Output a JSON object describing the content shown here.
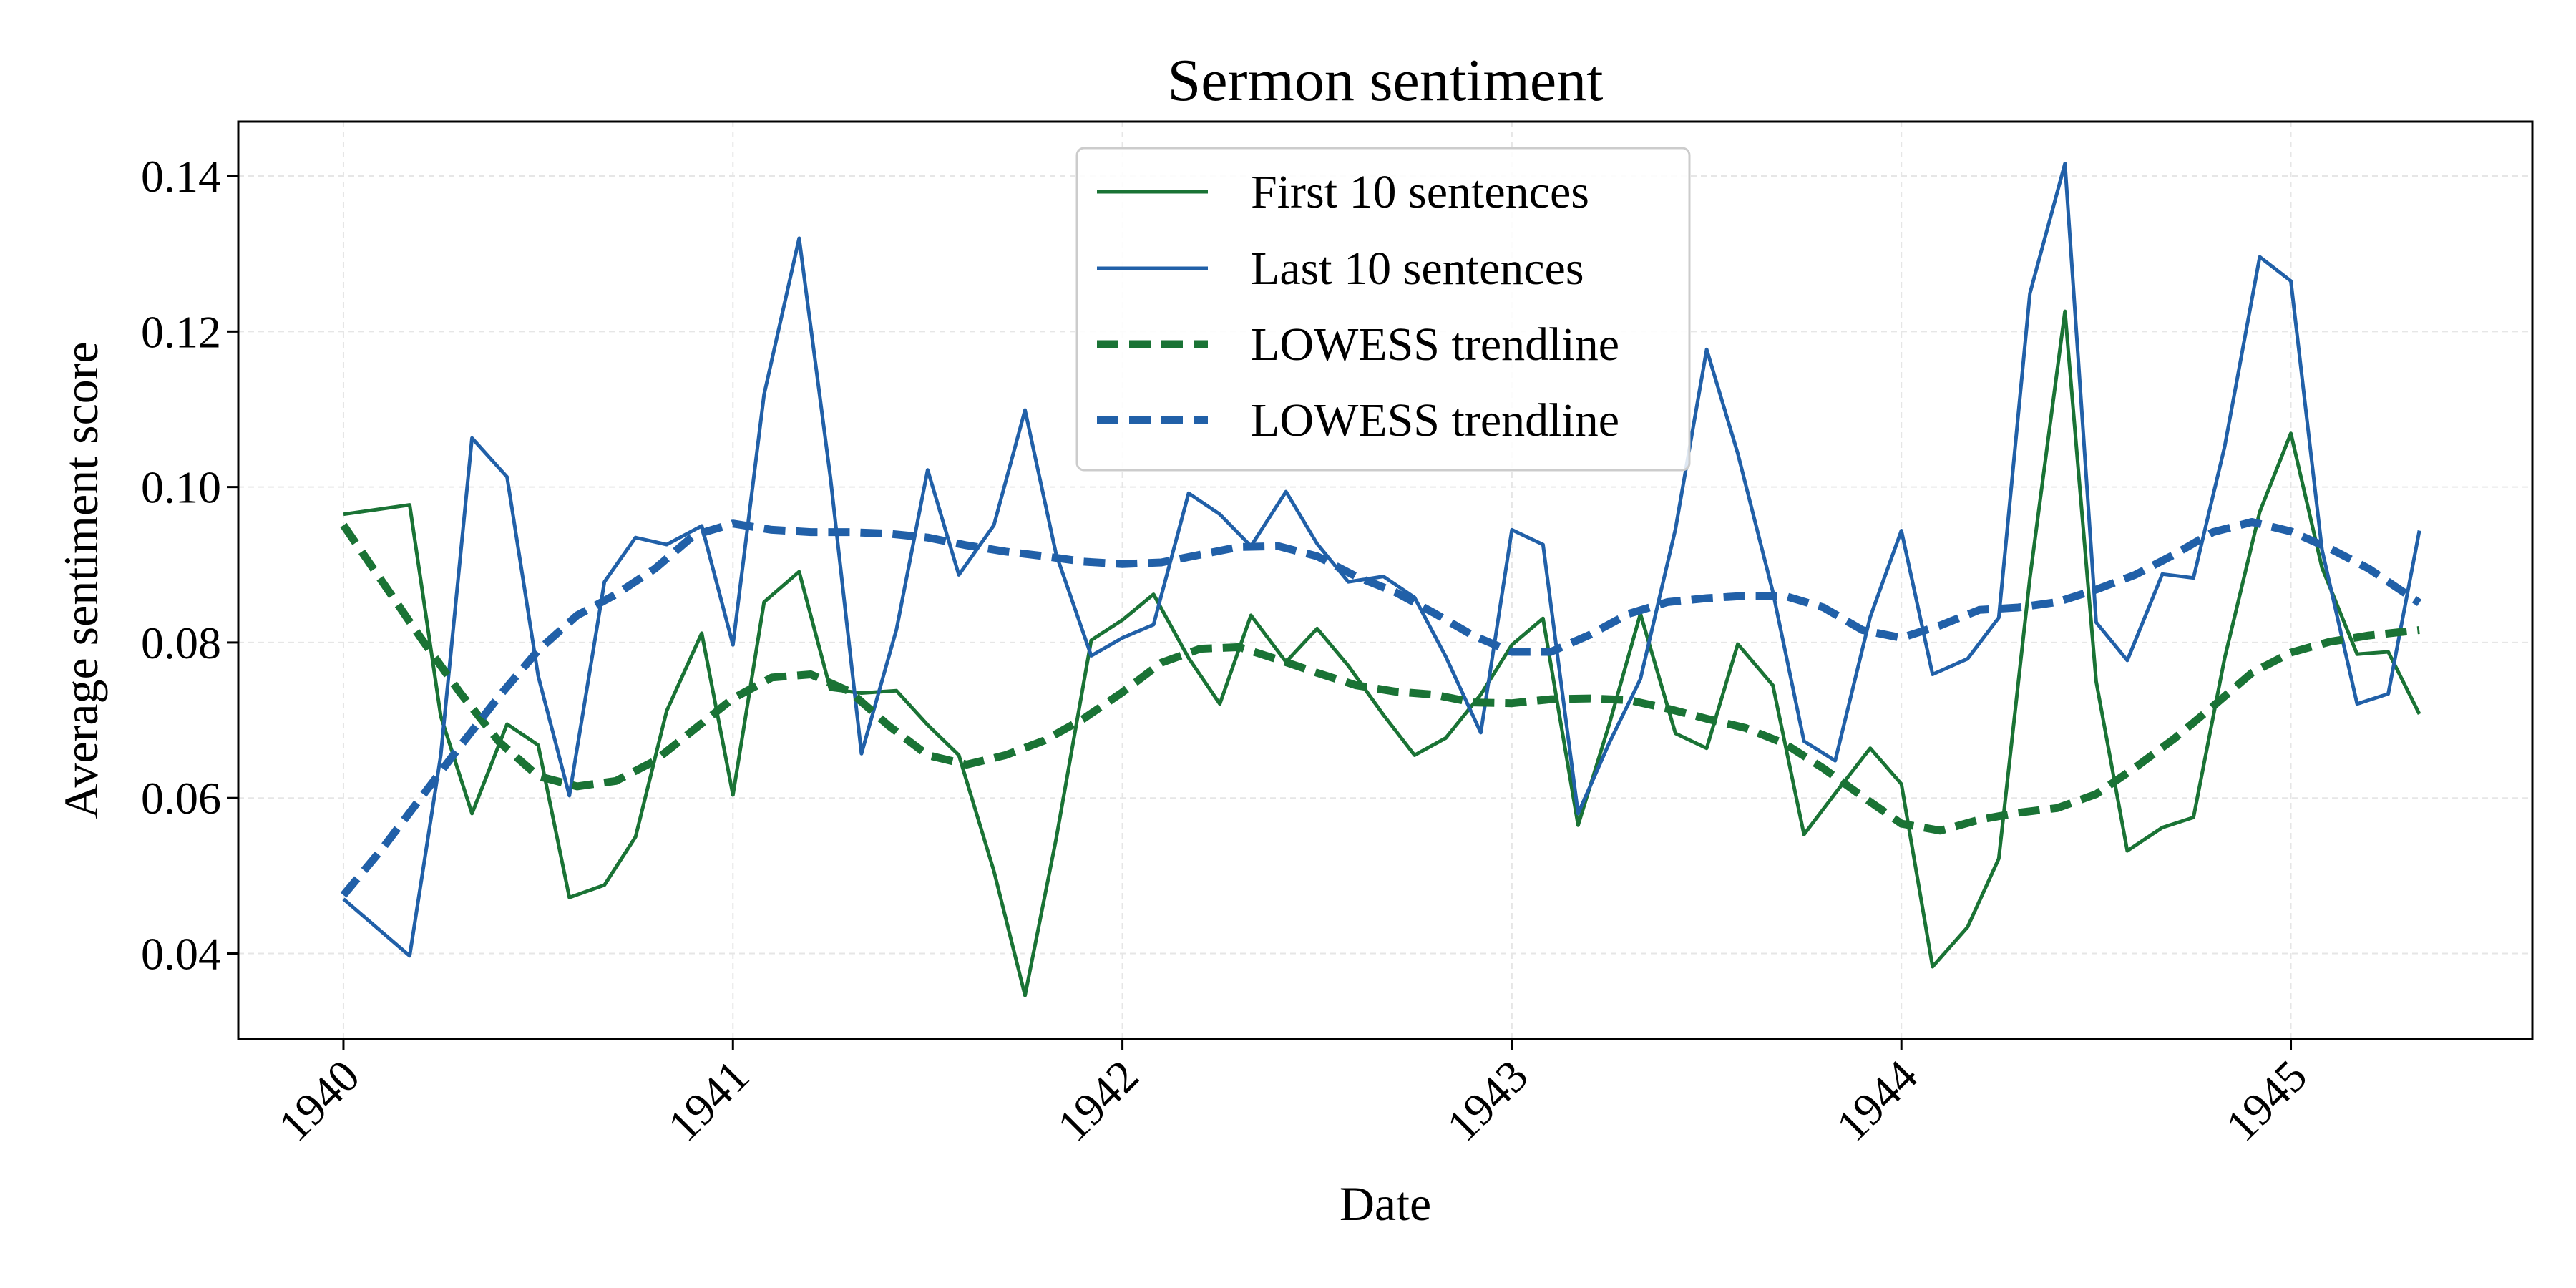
{
  "chart_data": {
    "type": "line",
    "title": "Sermon sentiment",
    "xlabel": "Date",
    "ylabel": "Average sentiment score",
    "x_ticks": [
      "1940",
      "1941",
      "1942",
      "1943",
      "1944",
      "1945"
    ],
    "y_ticks": [
      "0.04",
      "0.06",
      "0.08",
      "0.10",
      "0.12",
      "0.14"
    ],
    "x_range_years": [
      1939.73,
      1945.62
    ],
    "ylim": [
      0.029,
      0.147
    ],
    "grid": true,
    "legend_position": "top-center",
    "colors": {
      "green": "#1a7335",
      "blue": "#2160a8"
    },
    "series": [
      {
        "name": "First 10 sentences",
        "color": "#1a7335",
        "style": "solid",
        "x": [
          1940.0,
          1940.17,
          1940.25,
          1940.33,
          1940.42,
          1940.5,
          1940.58,
          1940.67,
          1940.75,
          1940.83,
          1940.92,
          1941.0,
          1941.08,
          1941.17,
          1941.25,
          1941.33,
          1941.42,
          1941.5,
          1941.58,
          1941.67,
          1941.75,
          1941.83,
          1941.92,
          1942.0,
          1942.08,
          1942.17,
          1942.25,
          1942.33,
          1942.42,
          1942.5,
          1942.58,
          1942.67,
          1942.75,
          1942.83,
          1942.92,
          1943.0,
          1943.08,
          1943.17,
          1943.25,
          1943.33,
          1943.42,
          1943.5,
          1943.58,
          1943.67,
          1943.75,
          1943.83,
          1943.92,
          1944.0,
          1944.08,
          1944.17,
          1944.25,
          1944.33,
          1944.42,
          1944.5,
          1944.58,
          1944.67,
          1944.75,
          1944.83,
          1944.92,
          1945.0,
          1945.08,
          1945.17,
          1945.25,
          1945.33
        ],
        "y": [
          0.0965,
          0.0977,
          0.0705,
          0.058,
          0.0695,
          0.0668,
          0.0472,
          0.0488,
          0.055,
          0.0712,
          0.0812,
          0.0604,
          0.0852,
          0.0891,
          0.074,
          0.0735,
          0.0738,
          0.0694,
          0.0655,
          0.0506,
          0.0346,
          0.0548,
          0.0803,
          0.0829,
          0.0862,
          0.078,
          0.0721,
          0.0835,
          0.0775,
          0.0818,
          0.077,
          0.0707,
          0.0655,
          0.0677,
          0.0733,
          0.0797,
          0.0831,
          0.0565,
          0.0695,
          0.0837,
          0.0683,
          0.0664,
          0.0798,
          0.0745,
          0.0553,
          0.0606,
          0.0664,
          0.0618,
          0.0383,
          0.0434,
          0.0522,
          0.0883,
          0.1226,
          0.075,
          0.0532,
          0.0562,
          0.0575,
          0.078,
          0.0968,
          0.1069,
          0.0896,
          0.0785,
          0.0788,
          0.0708
        ]
      },
      {
        "name": "Last 10 sentences",
        "color": "#2160a8",
        "style": "solid",
        "x": [
          1940.0,
          1940.17,
          1940.25,
          1940.33,
          1940.42,
          1940.5,
          1940.58,
          1940.67,
          1940.75,
          1940.83,
          1940.92,
          1941.0,
          1941.08,
          1941.17,
          1941.25,
          1941.33,
          1941.42,
          1941.5,
          1941.58,
          1941.67,
          1941.75,
          1941.83,
          1941.92,
          1942.0,
          1942.08,
          1942.17,
          1942.25,
          1942.33,
          1942.42,
          1942.5,
          1942.58,
          1942.67,
          1942.75,
          1942.83,
          1942.92,
          1943.0,
          1943.08,
          1943.17,
          1943.25,
          1943.33,
          1943.42,
          1943.5,
          1943.58,
          1943.67,
          1943.75,
          1943.83,
          1943.92,
          1944.0,
          1944.08,
          1944.17,
          1944.25,
          1944.33,
          1944.42,
          1944.5,
          1944.58,
          1944.67,
          1944.75,
          1944.83,
          1944.92,
          1945.0,
          1945.08,
          1945.17,
          1945.25,
          1945.33
        ],
        "y": [
          0.047,
          0.0397,
          0.0655,
          0.1063,
          0.1013,
          0.0757,
          0.0603,
          0.0878,
          0.0935,
          0.0926,
          0.095,
          0.0797,
          0.1119,
          0.132,
          0.1013,
          0.0657,
          0.0817,
          0.1022,
          0.0887,
          0.0951,
          0.1099,
          0.0913,
          0.0783,
          0.0806,
          0.0823,
          0.0992,
          0.0965,
          0.0924,
          0.0994,
          0.0927,
          0.0878,
          0.0885,
          0.0858,
          0.0782,
          0.0684,
          0.0945,
          0.0926,
          0.058,
          0.0671,
          0.0753,
          0.0946,
          0.1177,
          0.1043,
          0.0865,
          0.0673,
          0.0648,
          0.0833,
          0.0944,
          0.0759,
          0.0779,
          0.0832,
          0.1249,
          0.1416,
          0.0826,
          0.0777,
          0.0888,
          0.0883,
          0.1052,
          0.1296,
          0.1265,
          0.0919,
          0.0721,
          0.0734,
          0.0944
        ]
      },
      {
        "name": "LOWESS trendline",
        "color": "#1a7335",
        "style": "dashed",
        "x": [
          1940.0,
          1940.1,
          1940.2,
          1940.3,
          1940.4,
          1940.5,
          1940.6,
          1940.7,
          1940.8,
          1940.9,
          1941.0,
          1941.1,
          1941.2,
          1941.3,
          1941.4,
          1941.5,
          1941.6,
          1941.7,
          1941.8,
          1941.9,
          1942.0,
          1942.1,
          1942.2,
          1942.3,
          1942.4,
          1942.5,
          1942.6,
          1942.7,
          1942.8,
          1942.9,
          1943.0,
          1943.1,
          1943.2,
          1943.3,
          1943.4,
          1943.5,
          1943.6,
          1943.7,
          1943.8,
          1943.9,
          1944.0,
          1944.1,
          1944.2,
          1944.3,
          1944.4,
          1944.5,
          1944.6,
          1944.7,
          1944.8,
          1944.9,
          1945.0,
          1945.1,
          1945.2,
          1945.33
        ],
        "y": [
          0.0951,
          0.0878,
          0.0805,
          0.0735,
          0.0672,
          0.0628,
          0.0615,
          0.0622,
          0.0648,
          0.0688,
          0.0728,
          0.0755,
          0.0759,
          0.0737,
          0.0693,
          0.0655,
          0.0643,
          0.0655,
          0.0674,
          0.0702,
          0.0736,
          0.0774,
          0.0792,
          0.0794,
          0.0778,
          0.0761,
          0.0745,
          0.0737,
          0.0733,
          0.0723,
          0.0722,
          0.0727,
          0.0728,
          0.0726,
          0.0715,
          0.0702,
          0.069,
          0.067,
          0.0638,
          0.0602,
          0.0567,
          0.0558,
          0.0572,
          0.0581,
          0.0587,
          0.0605,
          0.0639,
          0.0676,
          0.0718,
          0.0761,
          0.0787,
          0.0801,
          0.0809,
          0.0816
        ]
      },
      {
        "name": "LOWESS trendline",
        "color": "#2160a8",
        "style": "dashed",
        "x": [
          1940.0,
          1940.1,
          1940.2,
          1940.3,
          1940.4,
          1940.5,
          1940.6,
          1940.7,
          1940.8,
          1940.9,
          1941.0,
          1941.1,
          1941.2,
          1941.3,
          1941.4,
          1941.5,
          1941.6,
          1941.7,
          1941.8,
          1941.9,
          1942.0,
          1942.1,
          1942.2,
          1942.3,
          1942.4,
          1942.5,
          1942.6,
          1942.7,
          1942.8,
          1942.9,
          1943.0,
          1943.1,
          1943.2,
          1943.3,
          1943.4,
          1943.5,
          1943.6,
          1943.7,
          1943.8,
          1943.9,
          1944.0,
          1944.1,
          1944.2,
          1944.3,
          1944.4,
          1944.5,
          1944.6,
          1944.7,
          1944.8,
          1944.9,
          1945.0,
          1945.1,
          1945.2,
          1945.33
        ],
        "y": [
          0.0475,
          0.0535,
          0.0601,
          0.0667,
          0.0731,
          0.079,
          0.0835,
          0.0862,
          0.0895,
          0.0938,
          0.0953,
          0.0945,
          0.0942,
          0.0942,
          0.094,
          0.0935,
          0.0925,
          0.0917,
          0.0911,
          0.0904,
          0.0901,
          0.0903,
          0.0913,
          0.0923,
          0.0924,
          0.0911,
          0.0885,
          0.0865,
          0.0838,
          0.0809,
          0.0788,
          0.0788,
          0.081,
          0.0837,
          0.0852,
          0.0857,
          0.086,
          0.086,
          0.0845,
          0.0816,
          0.0806,
          0.0822,
          0.0842,
          0.0845,
          0.0852,
          0.0868,
          0.0887,
          0.0913,
          0.0942,
          0.0955,
          0.0943,
          0.0921,
          0.0895,
          0.0851
        ]
      }
    ]
  }
}
